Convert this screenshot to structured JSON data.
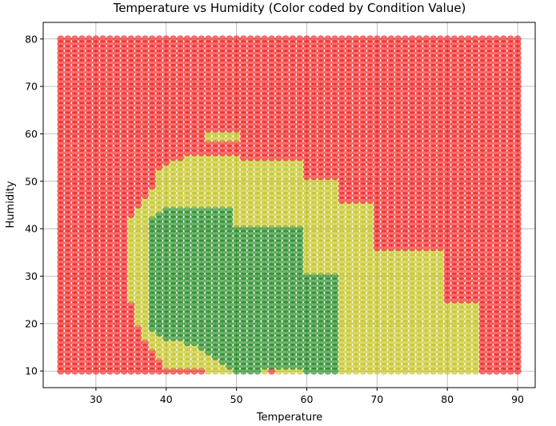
{
  "chart_data": {
    "type": "scatter",
    "title": "Temperature vs Humidity (Color coded by Condition Value)",
    "xlabel": "Temperature",
    "ylabel": "Humidity",
    "xlim": [
      22.5,
      92.5
    ],
    "ylim": [
      6.5,
      83.5
    ],
    "xticks": [
      30,
      40,
      50,
      60,
      70,
      80,
      90
    ],
    "yticks": [
      10,
      20,
      30,
      40,
      50,
      60,
      70,
      80
    ],
    "grid": true,
    "grid_x": {
      "start": 25,
      "stop": 90,
      "step": 1
    },
    "grid_y": {
      "start": 10,
      "stop": 80,
      "step": 1
    },
    "point_alpha": 0.6,
    "colors": {
      "red": "#f01010",
      "yellow": "#c0c010",
      "green": "#108010"
    },
    "default_color": "red",
    "regions": [
      {
        "color": "yellow",
        "rows": [
          [
            60,
            59,
            46,
            50
          ],
          [
            55,
            55,
            43,
            50
          ],
          [
            54,
            54,
            41,
            59
          ],
          [
            53,
            53,
            40,
            59
          ],
          [
            52,
            52,
            39,
            59
          ],
          [
            51,
            51,
            39,
            59
          ],
          [
            50,
            50,
            39,
            64
          ],
          [
            49,
            49,
            39,
            64
          ],
          [
            48,
            48,
            38,
            64
          ],
          [
            47,
            47,
            38,
            64
          ],
          [
            46,
            46,
            37,
            64
          ],
          [
            45,
            45,
            37,
            69
          ],
          [
            44,
            43,
            36,
            69
          ],
          [
            42,
            36,
            35,
            69
          ],
          [
            35,
            35,
            35,
            79
          ],
          [
            34,
            25,
            35,
            79
          ],
          [
            24,
            20,
            36,
            84
          ],
          [
            19,
            17,
            37,
            84
          ],
          [
            16,
            15,
            38,
            84
          ],
          [
            14,
            13,
            39,
            84
          ],
          [
            12,
            11,
            40,
            84
          ],
          [
            10,
            10,
            43,
            84
          ]
        ]
      },
      {
        "color": "green",
        "rows": [
          [
            44,
            44,
            40,
            49
          ],
          [
            43,
            43,
            39,
            49
          ],
          [
            42,
            41,
            38,
            49
          ],
          [
            40,
            40,
            38,
            59
          ],
          [
            39,
            31,
            38,
            59
          ],
          [
            30,
            30,
            38,
            64
          ],
          [
            29,
            19,
            38,
            64
          ],
          [
            18,
            18,
            39,
            64
          ],
          [
            17,
            17,
            40,
            64
          ],
          [
            16,
            16,
            43,
            64
          ],
          [
            15,
            15,
            45,
            64
          ],
          [
            14,
            14,
            46,
            64
          ],
          [
            13,
            13,
            47,
            64
          ],
          [
            12,
            12,
            48,
            64
          ],
          [
            11,
            11,
            49,
            64
          ],
          [
            10,
            10,
            50,
            53
          ],
          [
            10,
            10,
            60,
            64
          ]
        ]
      },
      {
        "color": "red",
        "rows": [
          [
            56,
            56,
            43,
            44
          ],
          [
            57,
            57,
            44,
            44
          ],
          [
            58,
            58,
            45,
            45
          ],
          [
            10,
            10,
            40,
            45
          ],
          [
            10,
            10,
            55,
            55
          ]
        ]
      }
    ]
  }
}
